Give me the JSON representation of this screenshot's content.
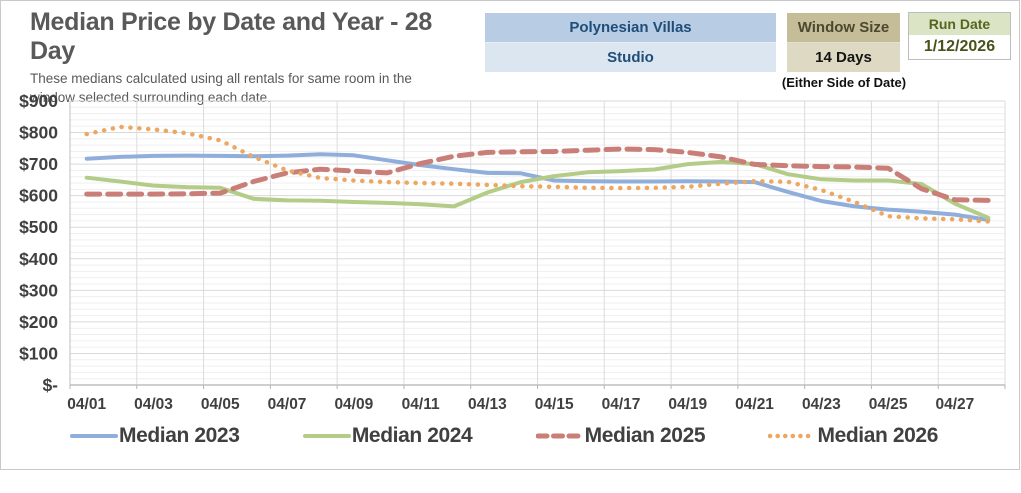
{
  "page": {
    "title": "Median Price by Date and Year - 28 Day",
    "subtitle": "These medians calculated using all rentals for same room in the window selected surrounding each date."
  },
  "header_boxes": {
    "resort": {
      "name": "Polynesian Villas",
      "room": "Studio"
    },
    "window": {
      "label": "Window Size",
      "value": "14 Days",
      "caption": "(Either Side of Date)"
    },
    "run_date": {
      "label": "Run Date",
      "value": "1/12/2026"
    }
  },
  "chart_data": {
    "type": "line",
    "title": "Median Price by Date and Year - 28 Day",
    "xlabel": "",
    "ylabel": "",
    "ylim": [
      0,
      900
    ],
    "y_major_step": 100,
    "y_minor_step": 20,
    "x_label_every": 2,
    "grid": true,
    "legend_position": "bottom",
    "y_tick_labels": [
      "$-",
      "$100",
      "$200",
      "$300",
      "$400",
      "$500",
      "$600",
      "$700",
      "$800",
      "$900"
    ],
    "x": [
      "04/01",
      "04/02",
      "04/03",
      "04/04",
      "04/05",
      "04/06",
      "04/07",
      "04/08",
      "04/09",
      "04/10",
      "04/11",
      "04/12",
      "04/13",
      "04/14",
      "04/15",
      "04/16",
      "04/17",
      "04/18",
      "04/19",
      "04/20",
      "04/21",
      "04/22",
      "04/23",
      "04/24",
      "04/25",
      "04/26",
      "04/27",
      "04/28"
    ],
    "series": [
      {
        "name": "Median 2023",
        "style": "solid",
        "color": "#8faedb",
        "values": [
          717,
          723,
          726,
          727,
          726,
          725,
          727,
          731,
          728,
          712,
          697,
          684,
          672,
          671,
          648,
          646,
          645,
          645,
          646,
          645,
          643,
          612,
          583,
          566,
          556,
          549,
          540,
          523
        ]
      },
      {
        "name": "Median 2024",
        "style": "solid",
        "color": "#b3cc87",
        "values": [
          657,
          645,
          632,
          627,
          625,
          590,
          585,
          584,
          580,
          577,
          573,
          566,
          610,
          643,
          662,
          674,
          678,
          683,
          700,
          707,
          700,
          668,
          652,
          648,
          648,
          637,
          575,
          530
        ]
      },
      {
        "name": "Median 2025",
        "style": "dashed",
        "color": "#c97f78",
        "values": [
          605,
          605,
          605,
          606,
          608,
          645,
          672,
          684,
          678,
          672,
          702,
          725,
          737,
          739,
          740,
          744,
          748,
          746,
          737,
          723,
          699,
          695,
          692,
          691,
          687,
          622,
          587,
          585
        ]
      },
      {
        "name": "Median 2026",
        "style": "dotted",
        "color": "#edA760",
        "values": [
          795,
          818,
          810,
          798,
          775,
          723,
          680,
          656,
          648,
          643,
          640,
          638,
          634,
          630,
          628,
          625,
          624,
          625,
          628,
          638,
          646,
          644,
          618,
          580,
          535,
          528,
          525,
          518
        ]
      }
    ]
  }
}
